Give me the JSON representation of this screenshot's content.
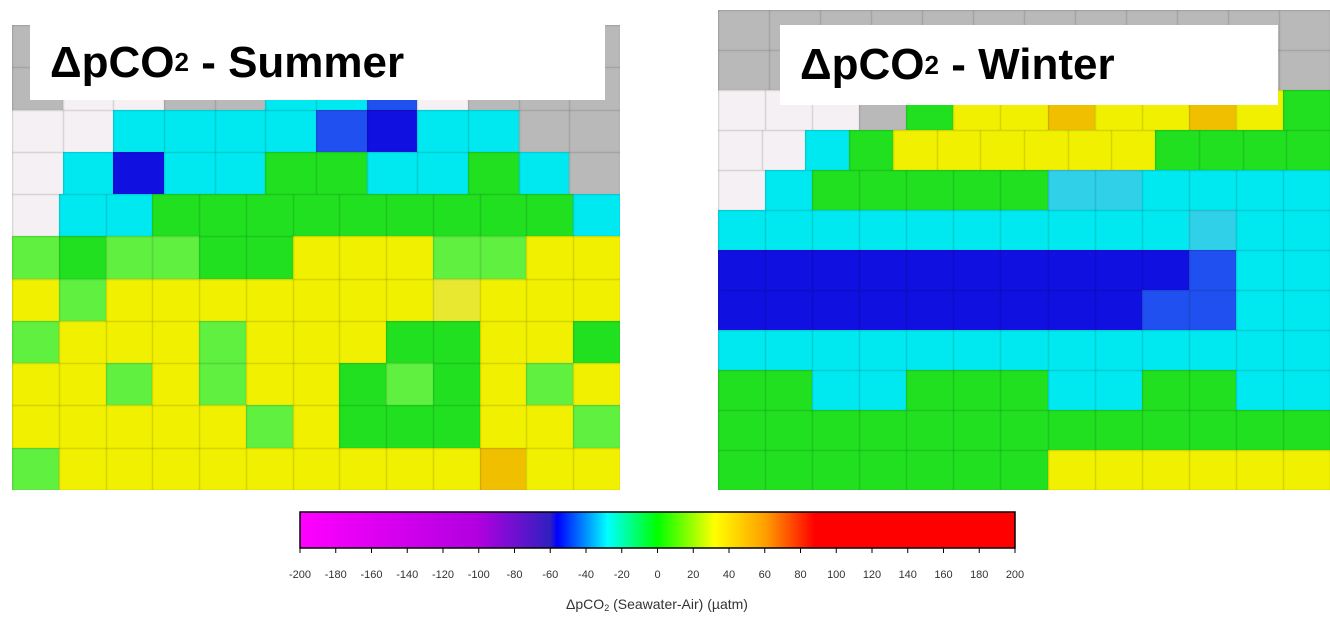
{
  "panels": [
    {
      "title": {
        "main": "ΔpCO",
        "sub": "2",
        "rest": " - Summer"
      }
    },
    {
      "title": {
        "main": "ΔpCO",
        "sub": "2",
        "rest": " - Winter"
      }
    }
  ],
  "colorbar": {
    "lim": [
      -200,
      200
    ],
    "ticks": [
      -200,
      -180,
      -160,
      -140,
      -120,
      -100,
      -80,
      -60,
      -40,
      -20,
      0,
      20,
      40,
      60,
      80,
      100,
      120,
      140,
      160,
      180,
      200
    ],
    "label": {
      "main": "ΔpCO",
      "sub": "2",
      "rest": " (Seawater-Air) (µatm)"
    }
  }
}
